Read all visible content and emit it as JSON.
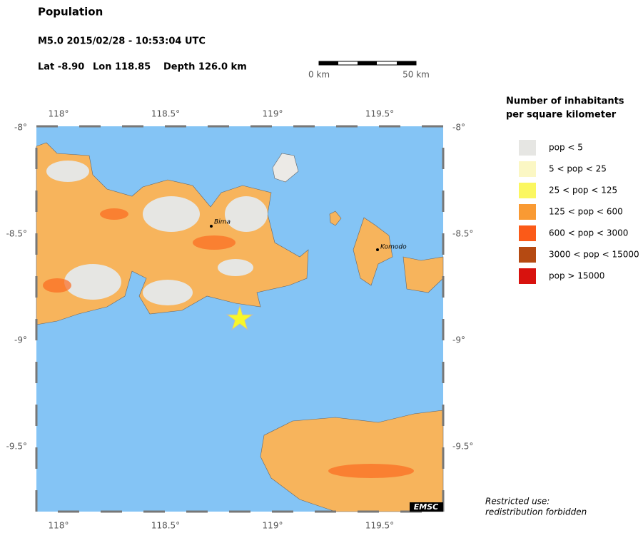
{
  "header": {
    "title": "Population",
    "event": "M5.0  2015/02/28 - 10:53:04 UTC",
    "lat": "Lat -8.90",
    "lon": "Lon 118.85",
    "depth": "Depth 126.0 km"
  },
  "scale_bar": {
    "start": "0 km",
    "end": "50 km"
  },
  "map": {
    "lon_labels": [
      "118°",
      "118.5°",
      "119°",
      "119.5°"
    ],
    "lat_labels": [
      "-8°",
      "-8.5°",
      "-9°",
      "-9.5°"
    ],
    "cities": [
      "Bima",
      "Komodo"
    ],
    "credit": "EMSC"
  },
  "legend": {
    "title_lines": [
      "Number of inhabitants",
      "per square kilometer"
    ],
    "items": [
      {
        "label": "pop < 5",
        "color": "#e6e6e3"
      },
      {
        "label": "5 < pop < 25",
        "color": "#fbf7c4"
      },
      {
        "label": "25 < pop < 125",
        "color": "#fbf760"
      },
      {
        "label": "125 < pop < 600",
        "color": "#f99a33"
      },
      {
        "label": "600 < pop < 3000",
        "color": "#fb5a18"
      },
      {
        "label": "3000 < pop < 15000",
        "color": "#b54a12"
      },
      {
        "label": "pop > 15000",
        "color": "#d8120e"
      }
    ]
  },
  "notice": [
    "Restricted use:",
    "redistribution forbidden"
  ]
}
